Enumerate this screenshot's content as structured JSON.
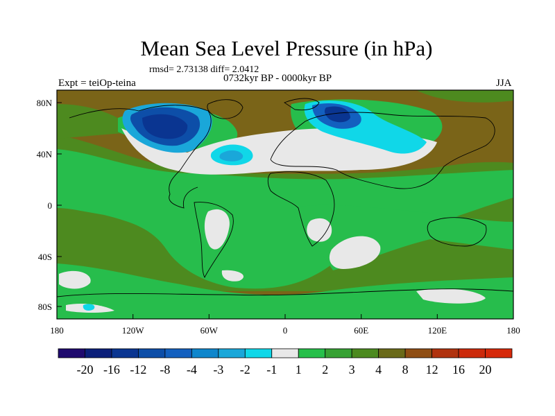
{
  "title": "Mean Sea Level Pressure (in hPa)",
  "stats_line": "rmsd= 2.73138 diff= 2.0412",
  "period": "0732kyr BP - 0000kyr BP",
  "experiment": "Expt = teiOp-teina",
  "season": "JJA",
  "lat_labels": [
    "80N",
    "40N",
    "0",
    "40S",
    "80S"
  ],
  "lon_labels": [
    "180",
    "120W",
    "60W",
    "0",
    "60E",
    "120E",
    "180"
  ],
  "colorbar": {
    "labels": [
      "-20",
      "-16",
      "-12",
      "-8",
      "-4",
      "-3",
      "-2",
      "-1",
      "1",
      "2",
      "3",
      "4",
      "8",
      "12",
      "16",
      "20"
    ],
    "colors": [
      "#1f0a6e",
      "#0b1f7a",
      "#0a3591",
      "#0d4ea8",
      "#1360bf",
      "#0e86cc",
      "#1aa7d9",
      "#10d7e8",
      "#e8e8e8",
      "#26bf4a",
      "#36a133",
      "#4c8a1f",
      "#6a6a19",
      "#8f4e14",
      "#b0320e",
      "#cc2a0b",
      "#d6290a"
    ]
  },
  "colors": {
    "ocean_brown": "#7a6418",
    "green": "#27bd4c",
    "olive": "#4d8a1f",
    "gray": "#e8e8e8",
    "deep_blue": "#0a3591",
    "cyan": "#10d7e8",
    "land_outline": "#000000"
  }
}
